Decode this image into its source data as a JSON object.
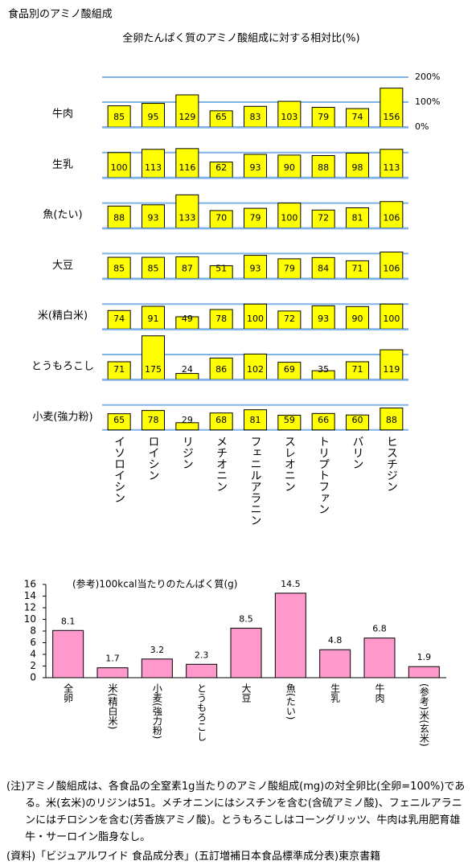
{
  "title": "食品別のアミノ酸組成",
  "chart_data": [
    {
      "type": "bar",
      "subtitle": "全卵たんぱく質のアミノ酸組成に対する相対比(%)",
      "categories": [
        "イソロイシン",
        "ロイシン",
        "リジン",
        "メチオニン",
        "フェニルアラニン",
        "スレオニン",
        "トリプトファン",
        "バリン",
        "ヒスチジン"
      ],
      "series": [
        {
          "name": "牛肉",
          "color": "#ffff00",
          "values": [
            85,
            95,
            129,
            65,
            83,
            103,
            79,
            74,
            156
          ]
        },
        {
          "name": "生乳",
          "color": "#ffff00",
          "values": [
            100,
            113,
            116,
            62,
            93,
            90,
            88,
            98,
            113
          ]
        },
        {
          "name": "魚(たい)",
          "color": "#ffff00",
          "values": [
            88,
            93,
            133,
            70,
            79,
            100,
            72,
            81,
            106
          ]
        },
        {
          "name": "大豆",
          "color": "#ffff00",
          "values": [
            85,
            85,
            87,
            51,
            93,
            79,
            84,
            71,
            106
          ]
        },
        {
          "name": "米(精白米)",
          "color": "#ffff00",
          "values": [
            74,
            91,
            49,
            78,
            100,
            72,
            93,
            90,
            100
          ]
        },
        {
          "name": "とうもろこし",
          "color": "#ffff00",
          "values": [
            71,
            175,
            24,
            86,
            102,
            69,
            35,
            71,
            119
          ]
        },
        {
          "name": "小麦(強力粉)",
          "color": "#ffff00",
          "values": [
            65,
            78,
            29,
            68,
            81,
            59,
            66,
            60,
            88
          ]
        }
      ],
      "ylim": [
        0,
        200
      ],
      "yticks": [
        {
          "value": 0,
          "label": "0%"
        },
        {
          "value": 100,
          "label": "100%"
        },
        {
          "value": 200,
          "label": "200%"
        }
      ],
      "grid": true,
      "grid_color": "#80b4e8"
    },
    {
      "type": "bar",
      "title": "(参考)100kcal当たりのたんぱく質(g)",
      "categories": [
        "全卵",
        "米(精白米)",
        "小麦(強力粉)",
        "とうもろこし",
        "大豆",
        "魚(たい)",
        "生乳",
        "牛肉",
        "(参考)米(玄米)"
      ],
      "values": [
        8.1,
        1.7,
        3.2,
        2.3,
        8.5,
        14.5,
        4.8,
        6.8,
        1.9
      ],
      "color": "#ff99cc",
      "ylim": [
        0,
        16
      ],
      "yticks": [
        0,
        2,
        4,
        6,
        8,
        10,
        12,
        14,
        16
      ],
      "grid": false
    }
  ],
  "notes": {
    "label": "(注)",
    "text": "アミノ酸組成は、各食品の全窒素1g当たりのアミノ酸組成(mg)の対全卵比(全卵=100%)である。米(玄米)のリジンは51。メチオニンにはシスチンを含む(含硫アミノ酸)、フェニルアラニンにはチロシンを含む(芳香族アミノ酸)。とうもろこしはコーングリッツ、牛肉は乳用肥育雄牛・サーロイン脂身なし。"
  },
  "source": {
    "label": "(資料)",
    "text": "「ビジュアルワイド 食品成分表」(五訂増補日本食品標準成分表)東京書籍"
  }
}
